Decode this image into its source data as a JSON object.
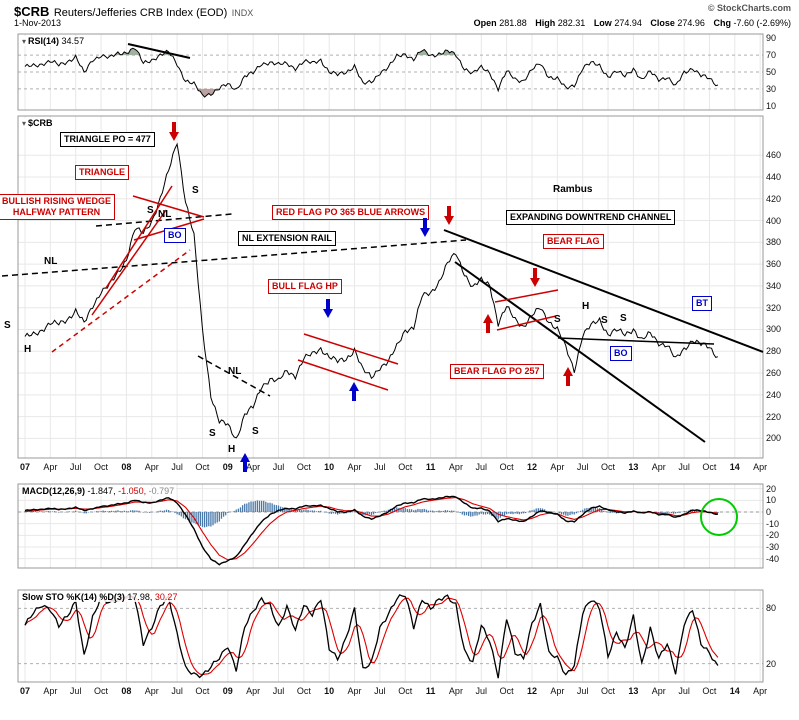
{
  "colors": {
    "annotation_red": "#cc0000",
    "annotation_blue": "#0000cc",
    "price_line": "#000000",
    "signal_red": "#dd0000",
    "macd_histogram": "#4878aa",
    "green_circle": "#00cc00",
    "grid_light": "#e8e8e8",
    "grid_dashed": "#b0b0b0",
    "panel_border": "#999999",
    "rsi_over_fill": "#8fa48f",
    "rsi_under_fill": "#b09090"
  },
  "header": {
    "symbol": "$CRB",
    "title": "Reuters/Jefferies CRB Index (EOD)",
    "exchange": "INDX",
    "copyright": "© StockCharts.com",
    "date": "1-Nov-2013",
    "quote": {
      "open_label": "Open",
      "open": "281.88",
      "high_label": "High",
      "high": "282.31",
      "low_label": "Low",
      "low": "274.94",
      "close_label": "Close",
      "close": "274.96",
      "chg_label": "Chg",
      "chg": "-7.60 (-2.69%)"
    }
  },
  "icons": {
    "collapse": "▾"
  },
  "panels": {
    "rsi": {
      "name": "RSI(14)",
      "value": "34.57"
    },
    "main": {
      "name": "$CRB"
    },
    "macd": {
      "name": "MACD(12,26,9)",
      "v1": "-1.847,",
      "v2": "-1.050,",
      "v3": "-0.797"
    },
    "sto": {
      "name": "Slow STO %K(14) %D(3)",
      "k": "17.98,",
      "d": "30.27"
    }
  },
  "axis": {
    "x_labels": [
      [
        0,
        "07",
        1
      ],
      [
        3,
        "Apr",
        0
      ],
      [
        6,
        "Jul",
        0
      ],
      [
        9,
        "Oct",
        0
      ],
      [
        12,
        "08",
        1
      ],
      [
        15,
        "Apr",
        0
      ],
      [
        18,
        "Jul",
        0
      ],
      [
        21,
        "Oct",
        0
      ],
      [
        24,
        "09",
        1
      ],
      [
        27,
        "Apr",
        0
      ],
      [
        30,
        "Jul",
        0
      ],
      [
        33,
        "Oct",
        0
      ],
      [
        36,
        "10",
        1
      ],
      [
        39,
        "Apr",
        0
      ],
      [
        42,
        "Jul",
        0
      ],
      [
        45,
        "Oct",
        0
      ],
      [
        48,
        "11",
        1
      ],
      [
        51,
        "Apr",
        0
      ],
      [
        54,
        "Jul",
        0
      ],
      [
        57,
        "Oct",
        0
      ],
      [
        60,
        "12",
        1
      ],
      [
        63,
        "Apr",
        0
      ],
      [
        66,
        "Jul",
        0
      ],
      [
        69,
        "Oct",
        0
      ],
      [
        72,
        "13",
        1
      ],
      [
        75,
        "Apr",
        0
      ],
      [
        78,
        "Jul",
        0
      ],
      [
        81,
        "Oct",
        0
      ],
      [
        84,
        "14",
        1
      ],
      [
        87,
        "Apr",
        0
      ]
    ],
    "price_ticks": [
      200,
      220,
      240,
      260,
      280,
      300,
      320,
      340,
      360,
      380,
      400,
      420,
      440,
      460
    ],
    "rsi_ticks": [
      90,
      70,
      50,
      30,
      10
    ],
    "rsi_grid": [
      30,
      50,
      70
    ],
    "macd_ticks": [
      20,
      10,
      0,
      -10,
      -20,
      -30,
      -40
    ],
    "sto_ticks": [
      80,
      20
    ],
    "sto_grid": [
      20,
      80
    ]
  },
  "annotations": {
    "rambus": "Rambus",
    "boxes": [
      {
        "text": "TRIANGLE  PO = 477",
        "style": "black"
      },
      {
        "text": "TRIANGLE",
        "style": "red"
      },
      {
        "text": "BULLISH RISING WEDGE",
        "text2": "HALFWAY PATTERN",
        "style": "red"
      },
      {
        "text": "RED FLAG PO 365 BLUE ARROWS",
        "style": "red"
      },
      {
        "text": "NL EXTENSION RAIL",
        "style": "black"
      },
      {
        "text": "EXPANDING DOWNTREND CHANNEL",
        "style": "black"
      },
      {
        "text": "BEAR FLAG",
        "style": "red"
      },
      {
        "text": "BULL FLAG HP",
        "style": "red"
      },
      {
        "text": "BEAR FLAG PO 257",
        "style": "red"
      },
      {
        "text": "BO",
        "style": "blue"
      },
      {
        "text": "BO",
        "style": "blue"
      },
      {
        "text": "BT",
        "style": "blue"
      }
    ],
    "letters": [
      "NL",
      "S",
      "H",
      "S",
      "S",
      "NL",
      "NL",
      "S",
      "H",
      "S",
      "S",
      "H",
      "S",
      "S"
    ]
  },
  "chart_data": [
    {
      "type": "line",
      "name": "RSI(14)",
      "panel": "rsi",
      "x_unit": "months, 0 = Jan 2007",
      "ylim": [
        0,
        100
      ],
      "overbought": 70,
      "midline": 50,
      "oversold": 30,
      "last_value": 34.57,
      "values": [
        55,
        58,
        60,
        62,
        58,
        63,
        68,
        48,
        65,
        70,
        66,
        72,
        74,
        78,
        60,
        65,
        70,
        73,
        60,
        40,
        35,
        22,
        25,
        30,
        35,
        30,
        45,
        48,
        60,
        62,
        58,
        60,
        55,
        62,
        60,
        65,
        50,
        46,
        50,
        58,
        35,
        38,
        50,
        55,
        68,
        72,
        65,
        75,
        70,
        72,
        74,
        70,
        55,
        48,
        55,
        50,
        30,
        50,
        42,
        40,
        52,
        60,
        45,
        42,
        30,
        35,
        55,
        60,
        58,
        45,
        50,
        45,
        55,
        40,
        50,
        42,
        44,
        32,
        50,
        55,
        45,
        42,
        34.57
      ]
    },
    {
      "type": "line",
      "name": "$CRB Reuters/Jefferies CRB Index, approx monthly closes read from bars",
      "panel": "main",
      "x_unit": "months, 0 = Jan 2007",
      "ylim": [
        182,
        496
      ],
      "yticks": [
        200,
        220,
        240,
        260,
        280,
        300,
        320,
        340,
        360,
        380,
        400,
        420,
        440,
        460
      ],
      "key_points": {
        "2008_peak": 473,
        "2009_low": 200,
        "2011_peak": 370,
        "2012_low": 263,
        "last_close": 274.96
      },
      "values": [
        292,
        296,
        300,
        305,
        305,
        310,
        317,
        305,
        322,
        335,
        340,
        352,
        365,
        392,
        388,
        400,
        420,
        445,
        473,
        418,
        385,
        300,
        240,
        215,
        212,
        200,
        222,
        228,
        248,
        255,
        252,
        262,
        258,
        273,
        277,
        283,
        275,
        270,
        273,
        282,
        262,
        256,
        266,
        270,
        284,
        300,
        302,
        330,
        334,
        344,
        360,
        370,
        352,
        338,
        345,
        342,
        305,
        320,
        310,
        303,
        312,
        320,
        308,
        300,
        283,
        263,
        295,
        303,
        309,
        296,
        299,
        295,
        301,
        290,
        296,
        288,
        286,
        272,
        282,
        291,
        286,
        283,
        275
      ]
    },
    {
      "type": "line",
      "name": "MACD(12,26,9)",
      "panel": "macd",
      "x_unit": "months, 0 = Jan 2007",
      "ylim": [
        -48,
        24
      ],
      "last": {
        "macd": -1.847,
        "signal": -1.05,
        "histogram": -0.797
      },
      "macd": [
        1,
        2,
        2.5,
        3,
        2,
        3,
        4,
        1,
        3,
        5,
        5,
        7,
        8,
        10,
        8,
        8,
        10,
        12,
        8,
        -2,
        -15,
        -30,
        -40,
        -45,
        -42,
        -38,
        -28,
        -18,
        -8,
        -2,
        1,
        3,
        3,
        5,
        5,
        6,
        3,
        0,
        0,
        2,
        -4,
        -6,
        -3,
        0,
        5,
        8,
        8,
        11,
        11,
        12,
        13,
        13,
        8,
        3,
        3,
        1,
        -8,
        -6,
        -7,
        -8,
        -4,
        1,
        0,
        -2,
        -8,
        -8,
        -2,
        3,
        5,
        2,
        0,
        -1,
        1,
        -1,
        0,
        -2,
        -2,
        -5,
        -2,
        2,
        1,
        -0.5,
        -1.85
      ],
      "signal": [
        0.5,
        1,
        1.8,
        2.4,
        2.4,
        2.6,
        3.2,
        2.5,
        2.7,
        3.8,
        4.6,
        5.8,
        7,
        8.5,
        8.5,
        8.2,
        9,
        10.5,
        9.5,
        4,
        -5,
        -17,
        -28,
        -37,
        -41,
        -40,
        -35,
        -27,
        -18,
        -10,
        -4,
        0,
        1.5,
        3,
        4,
        5,
        4.2,
        2.2,
        1,
        1.3,
        -1,
        -3.5,
        -3.5,
        -1.8,
        1.5,
        4.5,
        6.2,
        8.5,
        9.8,
        10.8,
        11.8,
        12.4,
        10.5,
        7,
        5,
        3,
        -2,
        -4,
        -5.5,
        -6.8,
        -5.5,
        -2.5,
        -1,
        -1.5,
        -4.5,
        -6.3,
        -4.3,
        -1,
        2,
        2.2,
        1.2,
        0.2,
        0.4,
        -0.3,
        -0.1,
        -1,
        -1.5,
        -3.2,
        -2.7,
        -0.5,
        0.3,
        -0.1,
        -1.05
      ]
    },
    {
      "type": "line",
      "name": "Slow STO %K(14) %D(3)",
      "panel": "sto",
      "x_unit": "months, 0 = Jan 2007",
      "ylim": [
        0,
        100
      ],
      "last": {
        "k": 17.98,
        "d": 30.27
      },
      "k": [
        60,
        75,
        85,
        80,
        60,
        70,
        88,
        30,
        70,
        90,
        85,
        92,
        95,
        90,
        40,
        60,
        85,
        92,
        50,
        15,
        10,
        8,
        15,
        25,
        40,
        15,
        60,
        75,
        90,
        85,
        60,
        80,
        55,
        85,
        75,
        90,
        35,
        25,
        50,
        80,
        12,
        20,
        60,
        75,
        90,
        93,
        60,
        92,
        80,
        88,
        92,
        85,
        35,
        20,
        60,
        45,
        8,
        70,
        30,
        25,
        65,
        85,
        30,
        25,
        8,
        20,
        75,
        88,
        80,
        30,
        55,
        35,
        70,
        20,
        60,
        25,
        40,
        10,
        65,
        80,
        40,
        30,
        17.98
      ]
    }
  ]
}
